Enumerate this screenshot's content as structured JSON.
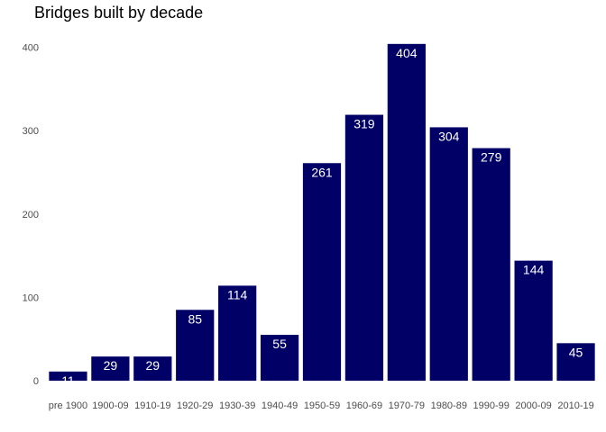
{
  "chart_data": {
    "type": "bar",
    "title": "Bridges built by decade",
    "xlabel": "",
    "ylabel": "",
    "categories": [
      "pre 1900",
      "1900-09",
      "1910-19",
      "1920-29",
      "1930-39",
      "1940-49",
      "1950-59",
      "1960-69",
      "1970-79",
      "1980-89",
      "1990-99",
      "2000-09",
      "2010-19"
    ],
    "values": [
      11,
      29,
      29,
      85,
      114,
      55,
      261,
      319,
      404,
      304,
      279,
      144,
      45
    ],
    "ylim": [
      0,
      420
    ],
    "yticks": [
      0,
      100,
      200,
      300,
      400
    ],
    "grid": false,
    "bar_color": "#000066",
    "label_color": "#ffffff"
  }
}
